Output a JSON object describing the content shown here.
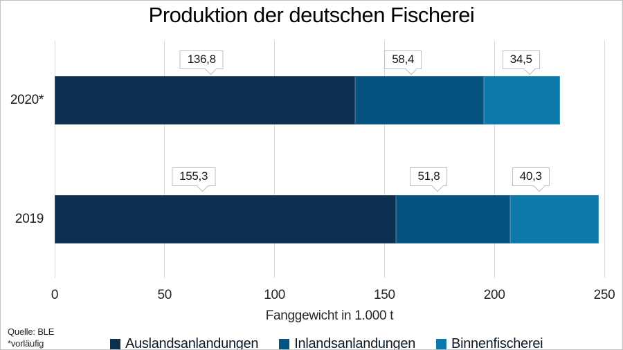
{
  "chart_data": {
    "type": "bar",
    "orientation": "horizontal",
    "stacked": true,
    "title": "Produktion der deutschen Fischerei",
    "categories": [
      "2020*",
      "2019"
    ],
    "series": [
      {
        "name": "Auslandsanlandungen",
        "color": "#0d3050",
        "values": [
          136.8,
          155.3
        ],
        "labels": [
          "136,8",
          "155,3"
        ]
      },
      {
        "name": "Inlandsanlandungen",
        "color": "#07537f",
        "values": [
          58.4,
          51.8
        ],
        "labels": [
          "58,4",
          "51,8"
        ]
      },
      {
        "name": "Binnenfischerei",
        "color": "#0d79a8",
        "values": [
          34.5,
          40.3
        ],
        "labels": [
          "34,5",
          "40,3"
        ]
      }
    ],
    "xlabel": "Fanggewicht in 1.000 t",
    "xlim": [
      0,
      250
    ],
    "xticks": [
      0,
      50,
      100,
      150,
      200,
      250
    ],
    "xtick_labels": [
      "0",
      "50",
      "100",
      "150",
      "200",
      "250"
    ],
    "grid": true,
    "legend_position": "bottom",
    "value_label_style": "callout"
  },
  "source": {
    "line1": "Quelle: BLE",
    "line2": "*vorläufig"
  },
  "colors": {
    "gridline": "#d9d9d9",
    "callout_border": "#bfbfbf",
    "background": "#ffffff"
  }
}
